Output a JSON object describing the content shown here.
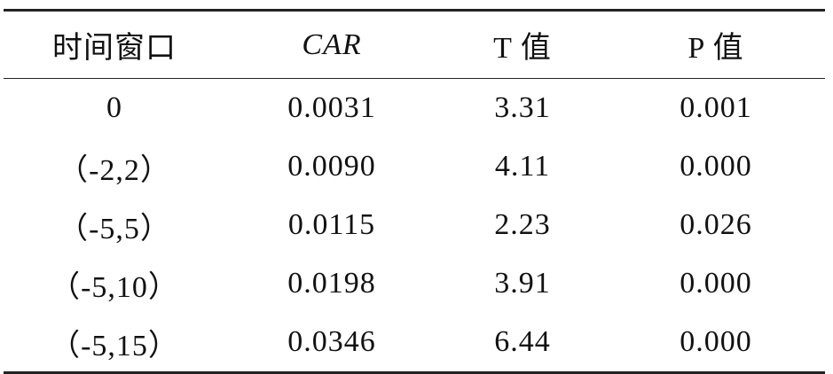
{
  "table": {
    "header": [
      "时间窗口",
      "CAR",
      "T 值",
      "P 值"
    ],
    "rows": [
      [
        "0",
        "0.0031",
        "3.31",
        "0.001"
      ],
      [
        "（-2,2）",
        "0.0090",
        "4.11",
        "0.000"
      ],
      [
        "（-5,5）",
        "0.0115",
        "2.23",
        "0.026"
      ],
      [
        "（-5,10）",
        "0.0198",
        "3.91",
        "0.000"
      ],
      [
        "（-5,15）",
        "0.0346",
        "6.44",
        "0.000"
      ]
    ]
  }
}
